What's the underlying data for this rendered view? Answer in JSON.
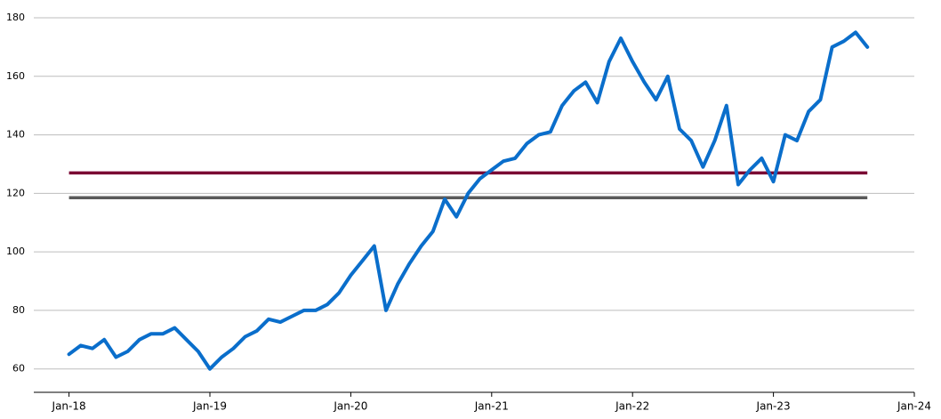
{
  "chart_data": {
    "type": "line",
    "x": [
      "2018-01",
      "2018-02",
      "2018-03",
      "2018-04",
      "2018-05",
      "2018-06",
      "2018-07",
      "2018-08",
      "2018-09",
      "2018-10",
      "2018-11",
      "2018-12",
      "2019-01",
      "2019-02",
      "2019-03",
      "2019-04",
      "2019-05",
      "2019-06",
      "2019-07",
      "2019-08",
      "2019-09",
      "2019-10",
      "2019-11",
      "2019-12",
      "2020-01",
      "2020-02",
      "2020-03",
      "2020-04",
      "2020-05",
      "2020-06",
      "2020-07",
      "2020-08",
      "2020-09",
      "2020-10",
      "2020-11",
      "2020-12",
      "2021-01",
      "2021-02",
      "2021-03",
      "2021-04",
      "2021-05",
      "2021-06",
      "2021-07",
      "2021-08",
      "2021-09",
      "2021-10",
      "2021-11",
      "2021-12",
      "2022-01",
      "2022-02",
      "2022-03",
      "2022-04",
      "2022-05",
      "2022-06",
      "2022-07",
      "2022-08",
      "2022-09",
      "2022-10",
      "2022-11",
      "2022-12",
      "2023-01",
      "2023-02",
      "2023-03",
      "2023-04",
      "2023-05",
      "2023-06",
      "2023-07",
      "2023-08",
      "2023-09"
    ],
    "series": [
      {
        "color": "#0a6ecb",
        "values": [
          65,
          68,
          67,
          70,
          64,
          66,
          70,
          72,
          72,
          74,
          70,
          66,
          60,
          64,
          67,
          71,
          73,
          77,
          76,
          78,
          80,
          80,
          82,
          86,
          92,
          97,
          102,
          80,
          89,
          96,
          102,
          107,
          118,
          112,
          120,
          125,
          128,
          131,
          132,
          137,
          140,
          141,
          150,
          155,
          158,
          151,
          165,
          173,
          165,
          158,
          152,
          160,
          142,
          138,
          129,
          138,
          150,
          123,
          128,
          132,
          124,
          140,
          138,
          148,
          152,
          170,
          172,
          175,
          170
        ]
      }
    ],
    "reference_lines": [
      {
        "value": 127,
        "color": "#7a0033"
      },
      {
        "value": 118.5,
        "color": "#5a5a5a"
      }
    ],
    "xlim": [
      "2017-10",
      "2024-01"
    ],
    "xticks": [
      {
        "value": "2018-01",
        "label": "Jan-18"
      },
      {
        "value": "2019-01",
        "label": "Jan-19"
      },
      {
        "value": "2020-01",
        "label": "Jan-20"
      },
      {
        "value": "2021-01",
        "label": "Jan-21"
      },
      {
        "value": "2022-01",
        "label": "Jan-22"
      },
      {
        "value": "2023-01",
        "label": "Jan-23"
      },
      {
        "value": "2024-01",
        "label": "Jan-24"
      }
    ],
    "ylim": [
      52,
      180
    ],
    "yticks": [
      60,
      80,
      100,
      120,
      140,
      160,
      180
    ],
    "grid": true
  }
}
